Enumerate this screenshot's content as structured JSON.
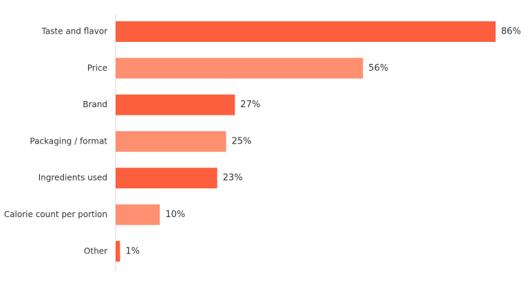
{
  "chart_data": {
    "type": "bar",
    "orientation": "horizontal",
    "categories": [
      "Taste and flavor",
      "Price",
      "Brand",
      "Packaging / format",
      "Ingredients used",
      "Calorie count per portion",
      "Other"
    ],
    "values": [
      86,
      56,
      27,
      25,
      23,
      10,
      1
    ],
    "value_labels": [
      "86%",
      "56%",
      "27%",
      "25%",
      "23%",
      "10%",
      "1%"
    ],
    "xlim": [
      0,
      86
    ],
    "grid": false,
    "legend": "none",
    "colors": {
      "bar_primary": "#fc5f3d",
      "bar_secondary": "#fe8f70",
      "axis": "#d9d9d9",
      "text": "#333333"
    }
  }
}
